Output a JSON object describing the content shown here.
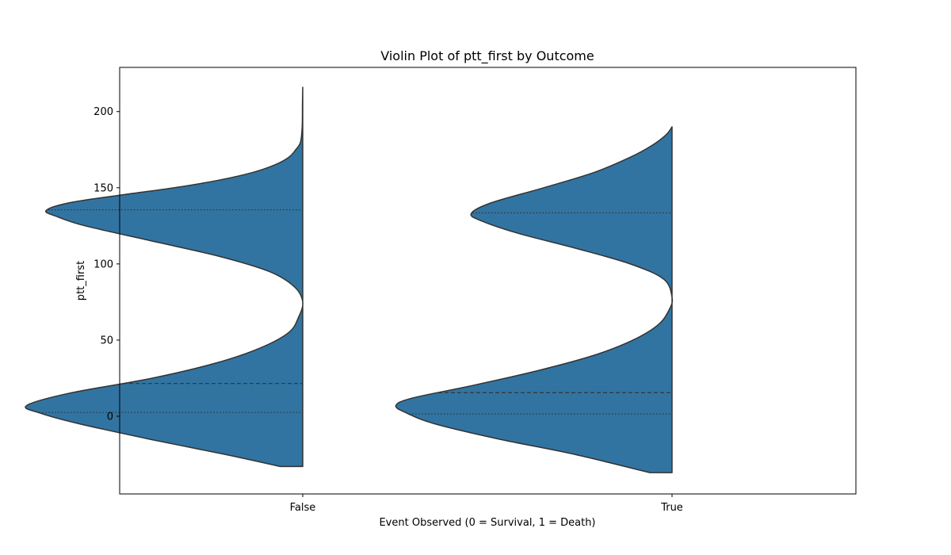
{
  "chart_data": {
    "type": "violin",
    "title": "Violin Plot of ptt_first by Outcome",
    "xlabel": "Event Observed (0 = Survival, 1 = Death)",
    "ylabel": "ptt_first",
    "categories": [
      "False",
      "True"
    ],
    "ylim": [
      -51,
      229
    ],
    "yticks": [
      0,
      50,
      100,
      150,
      200
    ],
    "grid": false,
    "legend": "none",
    "split": "left-half",
    "color": "#3274a1",
    "edge_color": "#333333",
    "violins": [
      {
        "category": "False",
        "y_min": -33,
        "y_max": 216,
        "q1": 2.5,
        "median": 21.5,
        "q3": 135.5,
        "density": [
          [
            -33,
            0.08
          ],
          [
            -25,
            0.28
          ],
          [
            -15,
            0.55
          ],
          [
            -5,
            0.8
          ],
          [
            2,
            0.94
          ],
          [
            7,
            0.99
          ],
          [
            15,
            0.84
          ],
          [
            25,
            0.54
          ],
          [
            35,
            0.31
          ],
          [
            45,
            0.15
          ],
          [
            55,
            0.05
          ],
          [
            65,
            0.015
          ],
          [
            75,
            0.0
          ],
          [
            85,
            0.03
          ],
          [
            95,
            0.12
          ],
          [
            105,
            0.3
          ],
          [
            115,
            0.54
          ],
          [
            125,
            0.78
          ],
          [
            131,
            0.88
          ],
          [
            135,
            0.92
          ],
          [
            140,
            0.84
          ],
          [
            145,
            0.66
          ],
          [
            150,
            0.46
          ],
          [
            155,
            0.3
          ],
          [
            160,
            0.18
          ],
          [
            165,
            0.1
          ],
          [
            170,
            0.05
          ],
          [
            175,
            0.025
          ],
          [
            180,
            0.008
          ],
          [
            190,
            0.002
          ],
          [
            205,
            0.001
          ],
          [
            216,
            0.0
          ]
        ]
      },
      {
        "category": "True",
        "y_min": -37,
        "y_max": 190,
        "q1": 1.5,
        "median": 15.5,
        "q3": 133.5,
        "density": [
          [
            -37,
            0.08
          ],
          [
            -25,
            0.35
          ],
          [
            -15,
            0.62
          ],
          [
            -5,
            0.85
          ],
          [
            2,
            0.95
          ],
          [
            7,
            0.99
          ],
          [
            12,
            0.93
          ],
          [
            20,
            0.72
          ],
          [
            30,
            0.48
          ],
          [
            40,
            0.28
          ],
          [
            50,
            0.14
          ],
          [
            60,
            0.05
          ],
          [
            70,
            0.01
          ],
          [
            78,
            0.0
          ],
          [
            90,
            0.03
          ],
          [
            100,
            0.15
          ],
          [
            110,
            0.34
          ],
          [
            120,
            0.55
          ],
          [
            128,
            0.68
          ],
          [
            133,
            0.72
          ],
          [
            140,
            0.65
          ],
          [
            150,
            0.46
          ],
          [
            160,
            0.28
          ],
          [
            170,
            0.15
          ],
          [
            178,
            0.07
          ],
          [
            185,
            0.02
          ],
          [
            190,
            0.0
          ]
        ]
      }
    ]
  }
}
